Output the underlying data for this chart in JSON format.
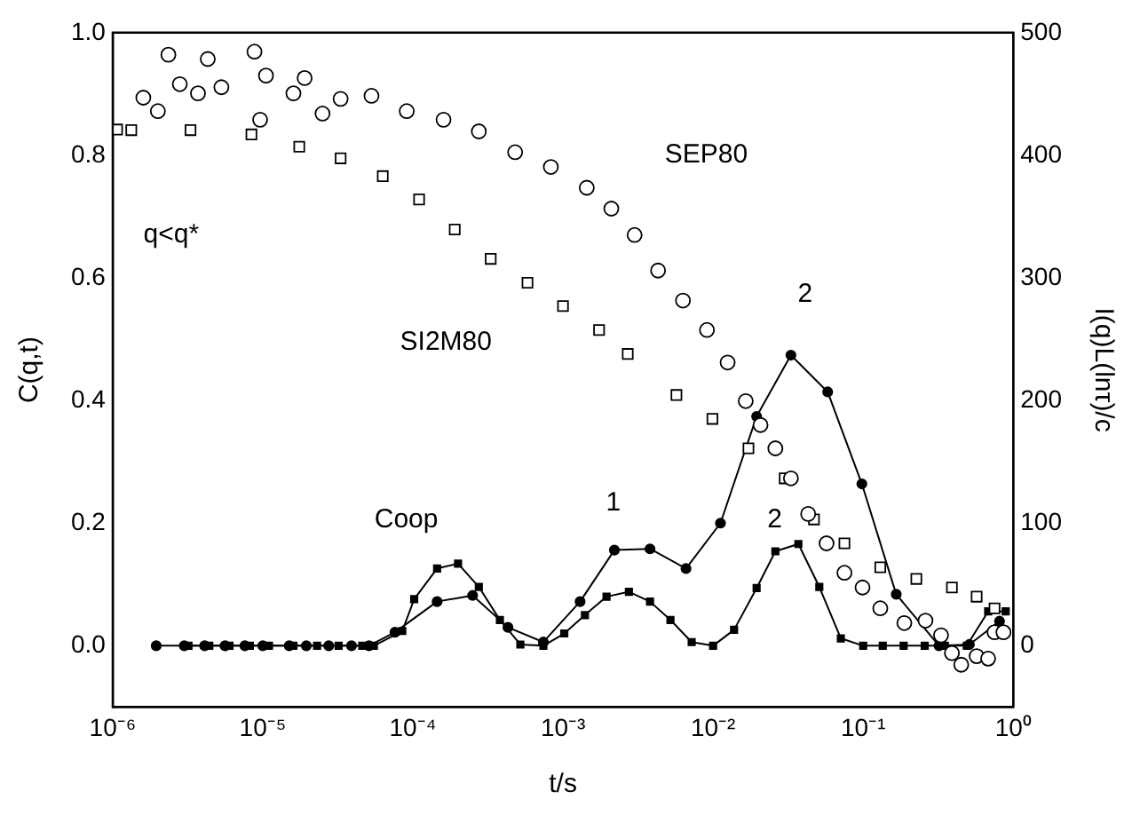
{
  "chart_data": {
    "type": "scatter",
    "xlabel": "t/s",
    "ylabel": "C(q,t)",
    "y2label": "I(q)L(lnτ)/c",
    "log": "x",
    "grid": false,
    "legend": false,
    "xlim": [
      1e-06,
      1
    ],
    "xticks": [
      {
        "value": 1e-06,
        "label": "10⁻⁶"
      },
      {
        "value": 1e-05,
        "label": "10⁻⁵"
      },
      {
        "value": 0.0001,
        "label": "10⁻⁴"
      },
      {
        "value": 0.001,
        "label": "10⁻³"
      },
      {
        "value": 0.01,
        "label": "10⁻²"
      },
      {
        "value": 0.1,
        "label": "10⁻¹"
      },
      {
        "value": 1,
        "label": "10⁰"
      }
    ],
    "ylim": [
      -0.1,
      1.0
    ],
    "yticks": [
      {
        "value": 0,
        "label": "0.0"
      },
      {
        "value": 0.2,
        "label": "0.2"
      },
      {
        "value": 0.4,
        "label": "0.4"
      },
      {
        "value": 0.6,
        "label": "0.6"
      },
      {
        "value": 0.8,
        "label": "0.8"
      },
      {
        "value": 1,
        "label": "1.0"
      }
    ],
    "y2lim": [
      -50,
      500
    ],
    "y2ticks": [
      0,
      100,
      200,
      300,
      400,
      500
    ],
    "series": [
      {
        "name": "SEP80",
        "marker": "circle",
        "color": "#000000",
        "x": [
          1.6e-06,
          2e-06,
          2.35e-06,
          2.8e-06,
          3.7e-06,
          4.3e-06,
          5.3e-06,
          8.8e-06,
          9.6e-06,
          1.05e-05,
          1.6e-05,
          1.9e-05,
          2.5e-05,
          3.3e-05,
          5.3e-05,
          9.1e-05,
          0.00016,
          0.000275,
          0.00048,
          0.00083,
          0.00144,
          0.0021,
          0.003,
          0.0043,
          0.0063,
          0.0091,
          0.0125,
          0.0165,
          0.0207,
          0.026,
          0.033,
          0.043,
          0.057,
          0.075,
          0.099,
          0.13,
          0.188,
          0.26,
          0.33,
          0.39,
          0.45,
          0.57,
          0.68,
          0.75,
          0.86
        ],
        "values": [
          0.894,
          0.872,
          0.964,
          0.916,
          0.901,
          0.957,
          0.911,
          0.969,
          0.858,
          0.93,
          0.901,
          0.926,
          0.868,
          0.892,
          0.897,
          0.872,
          0.858,
          0.839,
          0.805,
          0.781,
          0.747,
          0.713,
          0.67,
          0.612,
          0.563,
          0.515,
          0.462,
          0.399,
          0.36,
          0.322,
          0.273,
          0.215,
          0.167,
          0.119,
          0.095,
          0.061,
          0.037,
          0.041,
          0.017,
          -0.012,
          -0.031,
          -0.017,
          -0.021,
          0.022,
          0.022
        ]
      },
      {
        "name": "SI2M80",
        "marker": "square",
        "color": "#000000",
        "x": [
          1.07e-06,
          1.33e-06,
          3.3e-06,
          8.4e-06,
          1.75e-05,
          3.3e-05,
          6.3e-05,
          0.00011,
          0.00019,
          0.00033,
          0.00058,
          0.001,
          0.00174,
          0.0027,
          0.0057,
          0.0099,
          0.0172,
          0.03,
          0.047,
          0.075,
          0.13,
          0.226,
          0.39,
          0.57,
          0.75
        ],
        "values": [
          0.842,
          0.841,
          0.841,
          0.834,
          0.814,
          0.795,
          0.766,
          0.728,
          0.679,
          0.631,
          0.592,
          0.554,
          0.515,
          0.476,
          0.409,
          0.37,
          0.322,
          0.273,
          0.206,
          0.167,
          0.128,
          0.109,
          0.095,
          0.08,
          0.061
        ]
      },
      {
        "type": "line",
        "axis": "y2",
        "marker": "circle",
        "color": "#000000",
        "x": [
          1.95e-06,
          3e-06,
          4.1e-06,
          5.6e-06,
          7.6e-06,
          1e-05,
          1.5e-05,
          1.95e-05,
          2.75e-05,
          3.9e-05,
          5.1e-05,
          7.6e-05,
          0.000145,
          0.00025,
          0.00043,
          0.00074,
          0.0013,
          0.0022,
          0.0038,
          0.0066,
          0.0112,
          0.0195,
          0.033,
          0.058,
          0.098,
          0.166,
          0.32,
          0.51,
          0.81
        ],
        "values": [
          0,
          0,
          0,
          0,
          0,
          0,
          0,
          0,
          0,
          0,
          0,
          11,
          36,
          41,
          15,
          3,
          36,
          78,
          79,
          63,
          100,
          187,
          237,
          207,
          132,
          42,
          0,
          1,
          20
        ]
      },
      {
        "type": "line",
        "axis": "y2",
        "marker": "square",
        "color": "#000000",
        "x": [
          3.2e-06,
          4.4e-06,
          6e-06,
          8.2e-06,
          1.1e-05,
          1.6e-05,
          2.3e-05,
          3.2e-05,
          4.6e-05,
          5.5e-05,
          8.5e-05,
          0.000102,
          0.000145,
          0.0002,
          0.000275,
          0.00038,
          0.00052,
          0.00074,
          0.00102,
          0.0014,
          0.00195,
          0.00275,
          0.0038,
          0.0052,
          0.0072,
          0.01,
          0.0138,
          0.0195,
          0.026,
          0.037,
          0.051,
          0.071,
          0.1,
          0.135,
          0.186,
          0.257,
          0.35,
          0.49,
          0.68,
          0.89
        ],
        "values": [
          0,
          0,
          0,
          0,
          0,
          0,
          0,
          0,
          0,
          0,
          12,
          38,
          63,
          67,
          48,
          21,
          1,
          0,
          10,
          25,
          40,
          44,
          36,
          21,
          3,
          0,
          13,
          47,
          77,
          83,
          48,
          6,
          0,
          0,
          0,
          0,
          0,
          0,
          28,
          28
        ]
      }
    ],
    "annotations": [
      "q<q*",
      "Coop",
      "1",
      "2",
      "2"
    ]
  }
}
